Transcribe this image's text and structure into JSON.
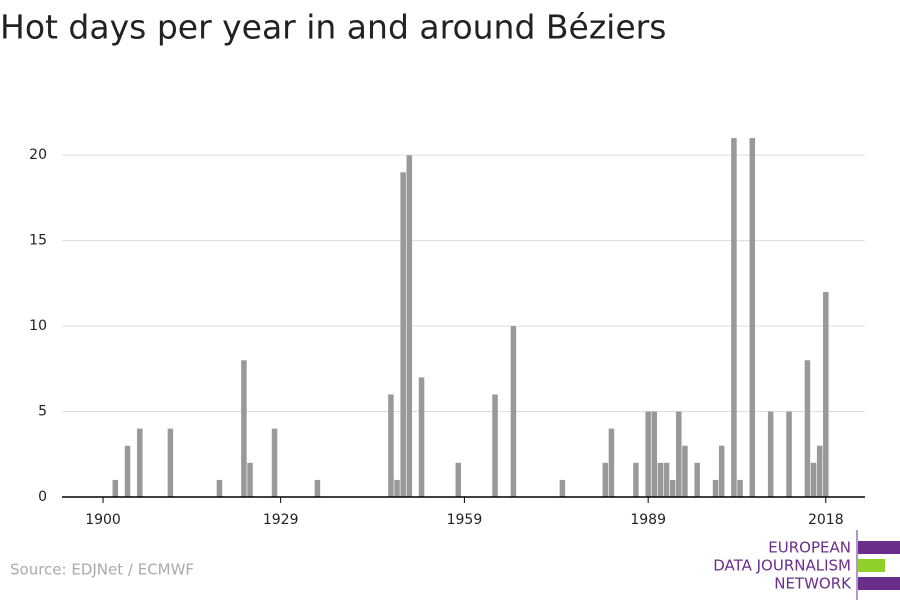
{
  "chart_data": {
    "type": "bar",
    "title": "Hot days per year in and around Béziers",
    "source": "Source: EDJNet / ECMWF",
    "logo": [
      "EUROPEAN",
      "DATA JOURNALISM",
      "NETWORK"
    ],
    "x": [
      1902,
      1904,
      1906,
      1911,
      1919,
      1923,
      1924,
      1928,
      1935,
      1947,
      1948,
      1949,
      1950,
      1952,
      1958,
      1964,
      1967,
      1975,
      1982,
      1983,
      1987,
      1989,
      1990,
      1991,
      1992,
      1993,
      1994,
      1995,
      1997,
      2000,
      2001,
      2003,
      2004,
      2006,
      2009,
      2012,
      2015,
      2016,
      2017,
      2018
    ],
    "values": [
      1,
      3,
      4,
      4,
      1,
      8,
      2,
      4,
      1,
      6,
      1,
      19,
      20,
      7,
      2,
      6,
      10,
      1,
      2,
      4,
      2,
      5,
      5,
      2,
      2,
      1,
      5,
      3,
      2,
      1,
      3,
      21,
      1,
      21,
      5,
      5,
      8,
      2,
      3,
      12
    ],
    "color": "#999999",
    "xlim": [
      1893.3,
      2024.4
    ],
    "xticks": [
      1900,
      1929,
      1959,
      1989,
      2018
    ],
    "ylim": [
      0,
      22
    ],
    "yticks": [
      0,
      5,
      10,
      15,
      20
    ],
    "grid": true
  }
}
